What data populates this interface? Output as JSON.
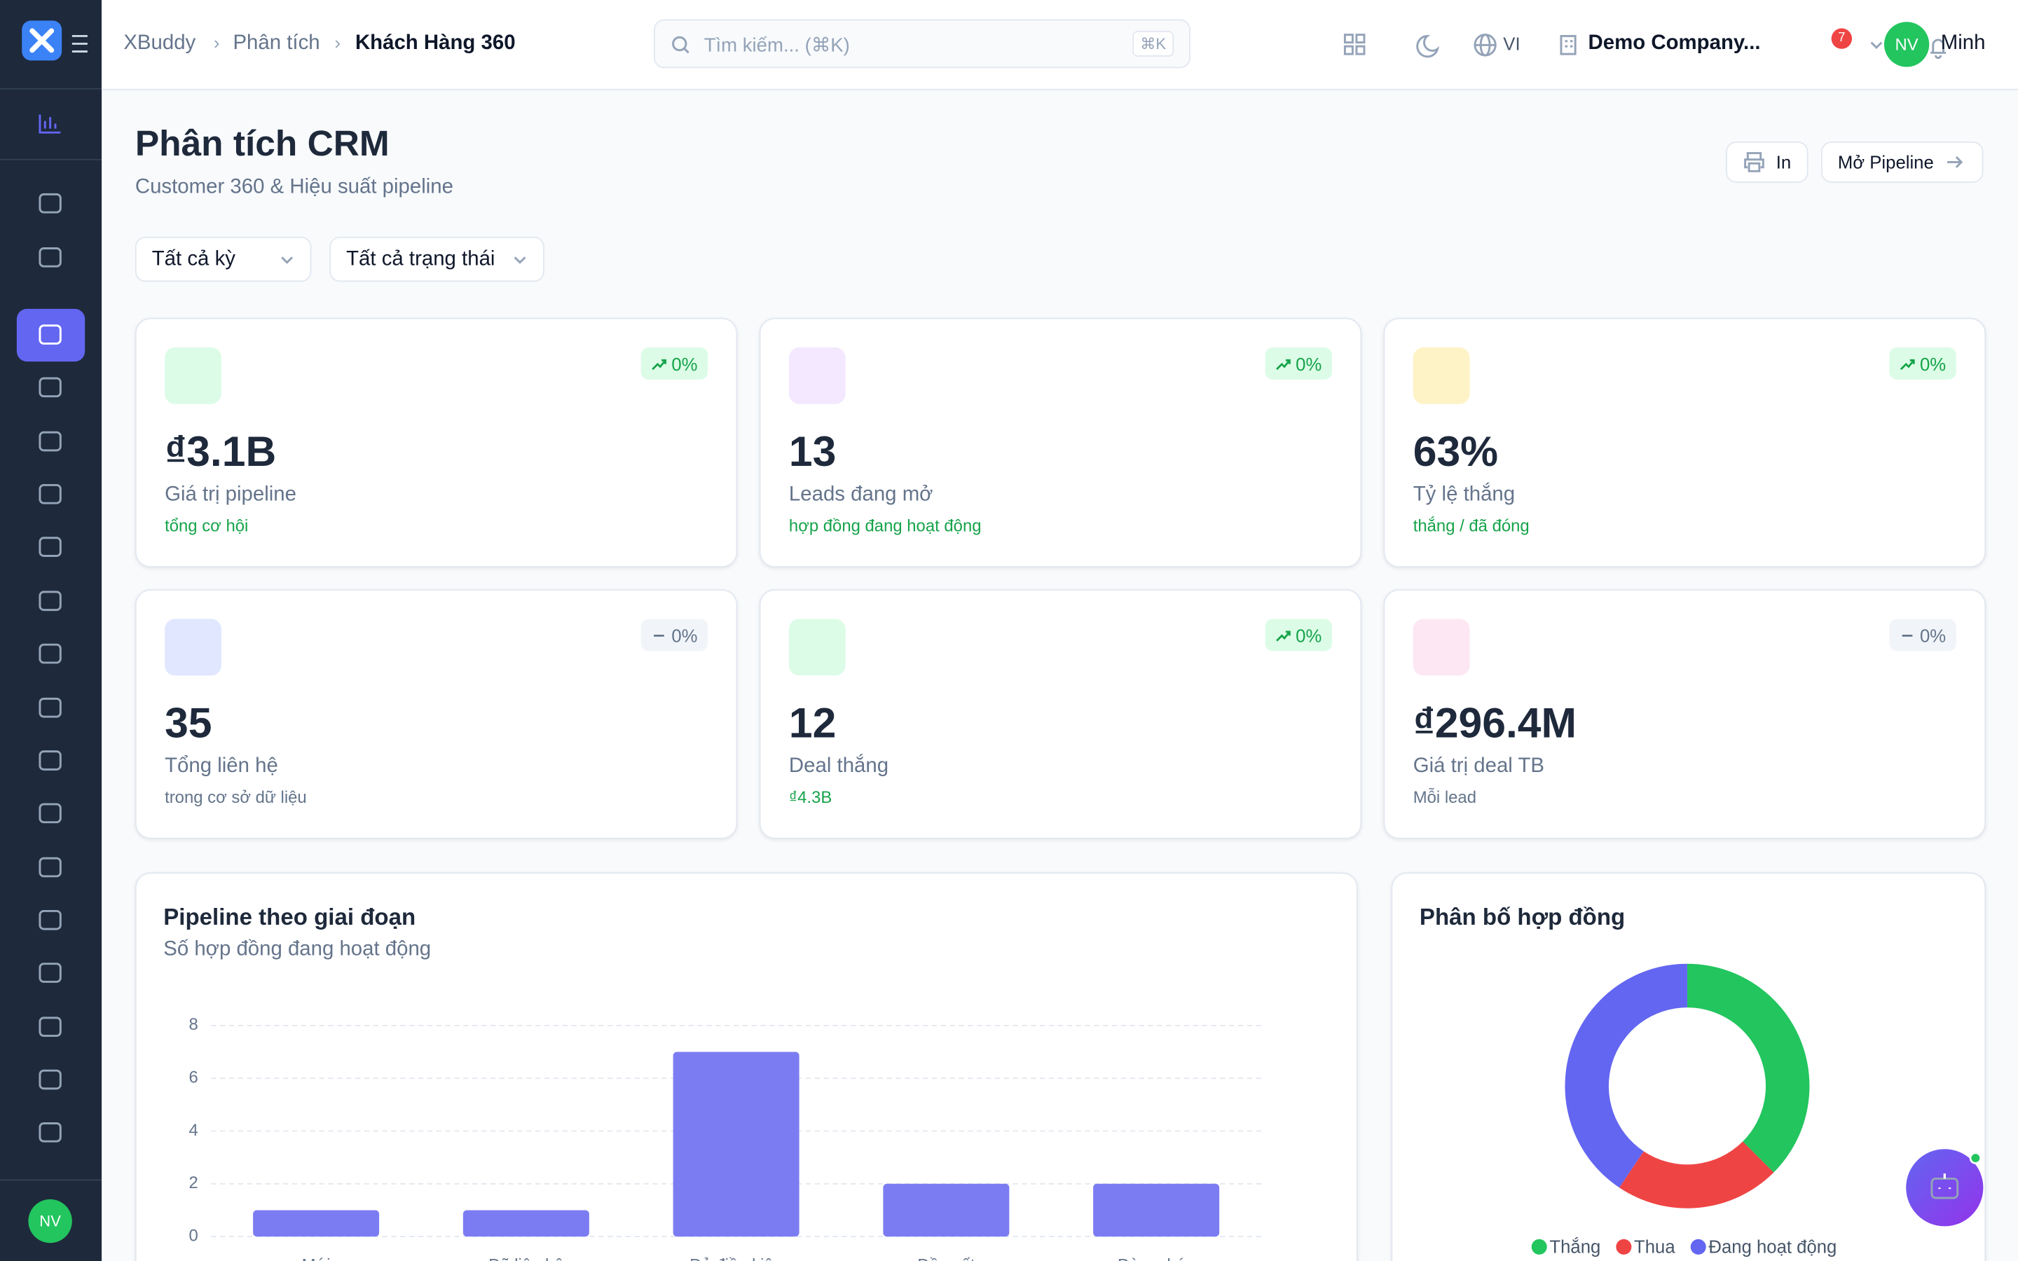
{
  "header": {
    "brand": "XBuddy",
    "breadcrumb": [
      "Phân tích",
      "Khách Hàng 360"
    ],
    "search_placeholder": "Tìm kiếm... (⌘K)",
    "search_shortcut": "⌘K",
    "language": "VI",
    "company": "Demo Company...",
    "notifications": "7",
    "avatar": "NV",
    "user": "Minh"
  },
  "sidebar": {
    "avatar": "NV"
  },
  "page": {
    "title": "Phân tích CRM",
    "subtitle": "Customer 360 & Hiệu suất pipeline",
    "print_button": "In",
    "pipeline_button": "Mở Pipeline"
  },
  "filters": [
    "Tất cả kỳ",
    "Tất cả trạng thái"
  ],
  "kpis": [
    {
      "value": "₫3.1B",
      "label": "Giá trị pipeline",
      "sub": "tổng cơ hội",
      "sub_color": "#16a34a",
      "badge": "0%",
      "trend": "up",
      "icon_bg": "#dcfce7"
    },
    {
      "value": "13",
      "label": "Leads đang mở",
      "sub": "hợp đồng đang hoạt động",
      "sub_color": "#16a34a",
      "badge": "0%",
      "trend": "up",
      "icon_bg": "#f3e8ff"
    },
    {
      "value": "63%",
      "label": "Tỷ lệ thắng",
      "sub": "thắng / đã đóng",
      "sub_color": "#16a34a",
      "badge": "0%",
      "trend": "up",
      "icon_bg": "#fef3c7"
    },
    {
      "value": "35",
      "label": "Tổng liên hệ",
      "sub": "trong cơ sở dữ liệu",
      "sub_color": "#64748b",
      "badge": "0%",
      "trend": "flat",
      "icon_bg": "#e0e7ff"
    },
    {
      "value": "12",
      "label": "Deal thắng",
      "sub": "₫4.3B",
      "sub_color": "#16a34a",
      "badge": "0%",
      "trend": "up",
      "icon_bg": "#dcfce7"
    },
    {
      "value": "₫296.4M",
      "label": "Giá trị deal TB",
      "sub": "Mỗi lead",
      "sub_color": "#64748b",
      "badge": "0%",
      "trend": "flat",
      "icon_bg": "#fce7f3"
    }
  ],
  "chart_data": [
    {
      "type": "bar",
      "title": "Pipeline theo giai đoạn",
      "subtitle": "Số hợp đồng đang hoạt động",
      "categories": [
        "Mới",
        "Đã liên hệ",
        "Đủ điều kiện",
        "Đề xuất",
        "Đàm phán"
      ],
      "values": [
        1,
        1,
        7,
        2,
        2
      ],
      "color": "#7c7cf2",
      "ylim": [
        0,
        8
      ],
      "yticks": [
        0,
        2,
        4,
        6,
        8
      ],
      "grid": true
    },
    {
      "type": "pie",
      "title": "Phân bố hợp đồng",
      "categories": [
        "Thắng",
        "Thua",
        "Đang hoạt động"
      ],
      "values": [
        12,
        7,
        13
      ],
      "colors": [
        "#22c55e",
        "#ef4444",
        "#6366f1"
      ],
      "donut": true
    }
  ]
}
